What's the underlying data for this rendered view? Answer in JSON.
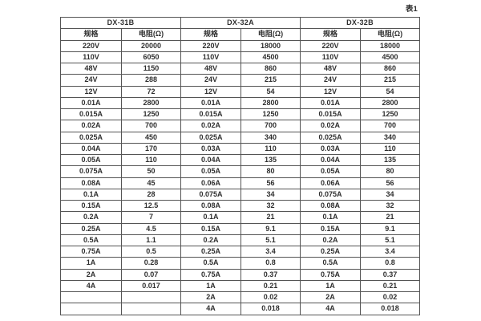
{
  "page": {
    "caption": "表1"
  },
  "table": {
    "groups": [
      {
        "name": "DX-31B",
        "spec_header": "规格",
        "resistance_header": "电阻(Ω)"
      },
      {
        "name": "DX-32A",
        "spec_header": "规格",
        "resistance_header": "电阻(Ω)"
      },
      {
        "name": "DX-32B",
        "spec_header": "规格",
        "resistance_header": "电阻(Ω)"
      }
    ],
    "rows": [
      [
        "220V",
        "20000",
        "220V",
        "18000",
        "220V",
        "18000"
      ],
      [
        "110V",
        "6050",
        "110V",
        "4500",
        "110V",
        "4500"
      ],
      [
        "48V",
        "1150",
        "48V",
        "860",
        "48V",
        "860"
      ],
      [
        "24V",
        "288",
        "24V",
        "215",
        "24V",
        "215"
      ],
      [
        "12V",
        "72",
        "12V",
        "54",
        "12V",
        "54"
      ],
      [
        "0.01A",
        "2800",
        "0.01A",
        "2800",
        "0.01A",
        "2800"
      ],
      [
        "0.015A",
        "1250",
        "0.015A",
        "1250",
        "0.015A",
        "1250"
      ],
      [
        "0.02A",
        "700",
        "0.02A",
        "700",
        "0.02A",
        "700"
      ],
      [
        "0.025A",
        "450",
        "0.025A",
        "340",
        "0.025A",
        "340"
      ],
      [
        "0.04A",
        "170",
        "0.03A",
        "110",
        "0.03A",
        "110"
      ],
      [
        "0.05A",
        "110",
        "0.04A",
        "135",
        "0.04A",
        "135"
      ],
      [
        "0.075A",
        "50",
        "0.05A",
        "80",
        "0.05A",
        "80"
      ],
      [
        "0.08A",
        "45",
        "0.06A",
        "56",
        "0.06A",
        "56"
      ],
      [
        "0.1A",
        "28",
        "0.075A",
        "34",
        "0.075A",
        "34"
      ],
      [
        "0.15A",
        "12.5",
        "0.08A",
        "32",
        "0.08A",
        "32"
      ],
      [
        "0.2A",
        "7",
        "0.1A",
        "21",
        "0.1A",
        "21"
      ],
      [
        "0.25A",
        "4.5",
        "0.15A",
        "9.1",
        "0.15A",
        "9.1"
      ],
      [
        "0.5A",
        "1.1",
        "0.2A",
        "5.1",
        "0.2A",
        "5.1"
      ],
      [
        "0.75A",
        "0.5",
        "0.25A",
        "3.4",
        "0.25A",
        "3.4"
      ],
      [
        "1A",
        "0.28",
        "0.5A",
        "0.8",
        "0.5A",
        "0.8"
      ],
      [
        "2A",
        "0.07",
        "0.75A",
        "0.37",
        "0.75A",
        "0.37"
      ],
      [
        "4A",
        "0.017",
        "1A",
        "0.21",
        "1A",
        "0.21"
      ],
      [
        "",
        "",
        "2A",
        "0.02",
        "2A",
        "0.02"
      ],
      [
        "",
        "",
        "4A",
        "0.018",
        "4A",
        "0.018"
      ]
    ]
  }
}
